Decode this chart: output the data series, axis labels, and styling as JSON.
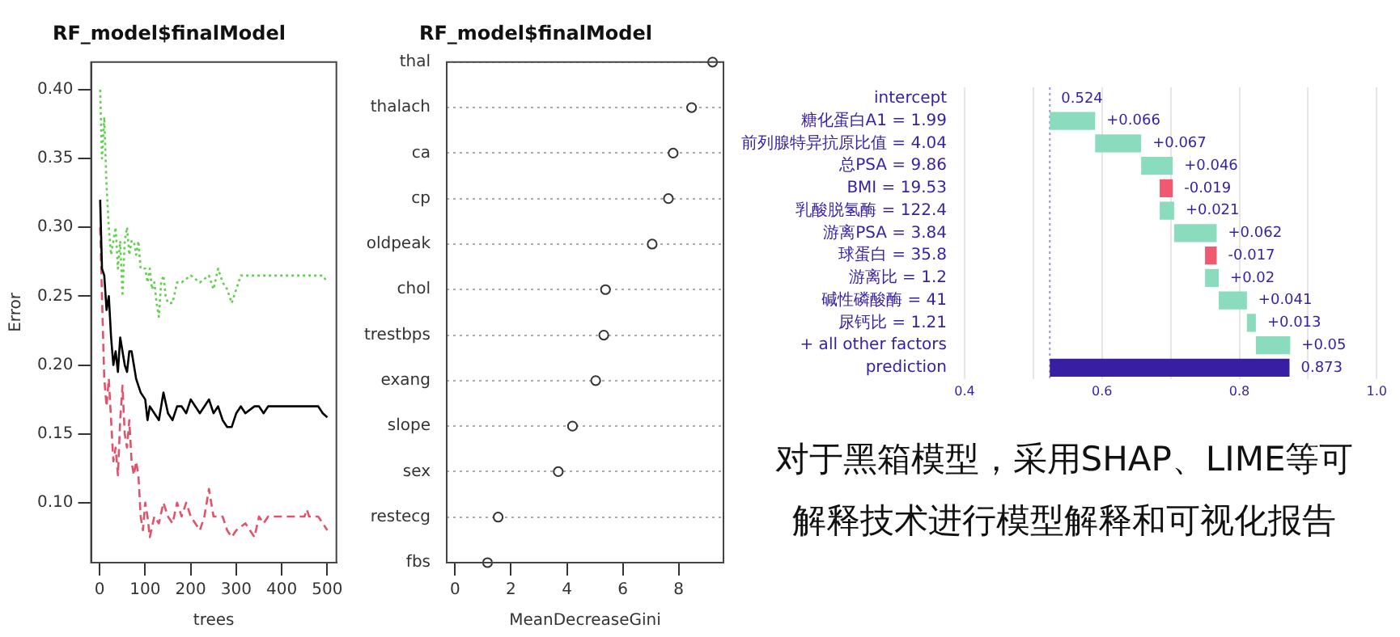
{
  "chart_data": [
    {
      "type": "line",
      "title": "RF_model$finalModel",
      "xlabel": "trees",
      "ylabel": "Error",
      "xlim": [
        -19,
        520
      ],
      "ylim": [
        0.0565,
        0.42
      ],
      "xticks": [
        0,
        100,
        200,
        300,
        400,
        500
      ],
      "yticks": [
        {
          "value": 0.1,
          "label": "0.10"
        },
        0.15,
        {
          "value": 0.2,
          "label": "0.20"
        },
        0.25,
        {
          "value": 0.3,
          "label": "0.30"
        },
        0.35,
        {
          "value": 0.4,
          "label": "0.40"
        }
      ],
      "grid": false,
      "legend": false,
      "marker": "none",
      "series": [
        {
          "color": "#61d04f",
          "line_style": "dotted",
          "x": [
            1,
            5,
            10,
            15,
            20,
            25,
            30,
            35,
            40,
            45,
            50,
            55,
            60,
            65,
            70,
            75,
            80,
            85,
            90,
            100,
            105,
            110,
            115,
            120,
            125,
            130,
            135,
            140,
            145,
            150,
            160,
            170,
            180,
            200,
            220,
            240,
            250,
            260,
            270,
            280,
            290,
            300,
            310,
            400,
            490,
            500
          ],
          "values": [
            0.4,
            0.35,
            0.38,
            0.33,
            0.3,
            0.28,
            0.29,
            0.3,
            0.27,
            0.29,
            0.25,
            0.29,
            0.3,
            0.28,
            0.29,
            0.29,
            0.28,
            0.29,
            0.27,
            0.27,
            0.26,
            0.27,
            0.255,
            0.26,
            0.245,
            0.235,
            0.26,
            0.265,
            0.25,
            0.245,
            0.245,
            0.26,
            0.26,
            0.265,
            0.26,
            0.265,
            0.255,
            0.27,
            0.26,
            0.255,
            0.245,
            0.255,
            0.265,
            0.265,
            0.265,
            0.26
          ]
        },
        {
          "color": "#000000",
          "line_style": "solid",
          "x": [
            1,
            5,
            10,
            15,
            20,
            25,
            30,
            35,
            40,
            45,
            50,
            55,
            60,
            65,
            70,
            75,
            80,
            90,
            100,
            105,
            110,
            120,
            130,
            140,
            150,
            160,
            170,
            180,
            190,
            200,
            210,
            220,
            230,
            240,
            250,
            260,
            270,
            280,
            290,
            300,
            310,
            320,
            340,
            350,
            360,
            370,
            450,
            460,
            480,
            490,
            500
          ],
          "values": [
            0.32,
            0.27,
            0.265,
            0.24,
            0.25,
            0.22,
            0.2,
            0.21,
            0.195,
            0.22,
            0.21,
            0.2,
            0.195,
            0.21,
            0.21,
            0.2,
            0.19,
            0.18,
            0.175,
            0.16,
            0.17,
            0.165,
            0.16,
            0.18,
            0.165,
            0.16,
            0.17,
            0.17,
            0.165,
            0.175,
            0.17,
            0.165,
            0.17,
            0.175,
            0.165,
            0.17,
            0.16,
            0.155,
            0.155,
            0.165,
            0.17,
            0.165,
            0.17,
            0.17,
            0.165,
            0.17,
            0.17,
            0.17,
            0.17,
            0.165,
            0.162
          ]
        },
        {
          "color": "#df536b",
          "line_style": "dashed",
          "x": [
            1,
            5,
            10,
            15,
            20,
            25,
            30,
            35,
            40,
            45,
            50,
            55,
            60,
            65,
            70,
            75,
            80,
            85,
            90,
            95,
            100,
            105,
            110,
            120,
            130,
            140,
            150,
            160,
            170,
            180,
            190,
            200,
            210,
            220,
            230,
            240,
            250,
            270,
            280,
            290,
            300,
            320,
            340,
            350,
            360,
            370,
            450,
            455,
            460,
            480,
            490,
            500
          ],
          "values": [
            0.3,
            0.25,
            0.19,
            0.17,
            0.19,
            0.16,
            0.13,
            0.14,
            0.12,
            0.16,
            0.185,
            0.15,
            0.14,
            0.16,
            0.13,
            0.12,
            0.13,
            0.12,
            0.09,
            0.08,
            0.1,
            0.09,
            0.075,
            0.09,
            0.085,
            0.1,
            0.09,
            0.085,
            0.1,
            0.09,
            0.1,
            0.09,
            0.085,
            0.08,
            0.09,
            0.11,
            0.09,
            0.09,
            0.08,
            0.075,
            0.08,
            0.085,
            0.075,
            0.09,
            0.085,
            0.09,
            0.09,
            0.095,
            0.09,
            0.09,
            0.085,
            0.08
          ]
        }
      ]
    },
    {
      "type": "scatter",
      "orientation": "horizontal",
      "title": "RF_model$finalModel",
      "xlabel": "MeanDecreaseGini",
      "categories": [
        "thal",
        "thalach",
        "ca",
        "cp",
        "oldpeak",
        "chol",
        "trestbps",
        "exang",
        "slope",
        "sex",
        "restecg",
        "fbs"
      ],
      "values": [
        9.21,
        8.46,
        7.8,
        7.63,
        7.05,
        5.38,
        5.32,
        5.03,
        4.2,
        3.69,
        1.54,
        1.16
      ],
      "color": "#333333",
      "marker": "circle",
      "xlim": [
        -0.3,
        9.6
      ],
      "xticks": [
        0,
        2,
        4,
        6,
        8
      ],
      "grid": "y",
      "legend": false
    },
    {
      "type": "bar",
      "orientation": "horizontal",
      "categories": [
        "intercept",
        "糖化蛋白A1 = 1.99",
        "前列腺特异抗原比值 = 4.04",
        "总PSA = 9.86",
        "BMI = 19.53",
        "乳酸脱氢酶 = 122.4",
        "游离PSA = 3.84",
        "球蛋白 = 35.8",
        "游离比 = 1.2",
        "碱性磷酸酶 = 41",
        "尿钙比 = 1.21",
        "+ all other factors",
        "prediction"
      ],
      "base": [
        null,
        0.524,
        0.59,
        0.657,
        0.703,
        0.684,
        0.705,
        0.767,
        0.75,
        0.77,
        0.811,
        0.824,
        0.524
      ],
      "values": [
        null,
        0.066,
        0.067,
        0.046,
        -0.019,
        0.021,
        0.062,
        -0.017,
        0.02,
        0.041,
        0.013,
        0.05,
        0.349
      ],
      "colors": [
        null,
        "#8bdcbe",
        "#8bdcbe",
        "#8bdcbe",
        "#f05a71",
        "#8bdcbe",
        "#8bdcbe",
        "#f05a71",
        "#8bdcbe",
        "#8bdcbe",
        "#8bdcbe",
        "#8bdcbe",
        "#371ea3"
      ],
      "value_labels": [
        null,
        "+0.066",
        "+0.067",
        "+0.046",
        "-0.019",
        "+0.021",
        "+0.062",
        "-0.017",
        "+0.02",
        "+0.041",
        "+0.013",
        "+0.05",
        "0.873"
      ],
      "xlim": [
        0.4,
        1.0
      ],
      "xticks": [
        0.4,
        {
          "value": 0.5,
          "label": null
        },
        0.6,
        {
          "value": 0.7,
          "label": null
        },
        0.8,
        {
          "value": 0.9,
          "label": null
        },
        {
          "value": 1,
          "label": "1.0"
        }
      ],
      "grid": "x",
      "legend": false,
      "ref_lines": [
        {
          "axis": "x",
          "value": 0.524,
          "label": "0.524",
          "color": "#9f92e0",
          "line_style": "dotted"
        }
      ]
    },
    {
      "type": "other",
      "annotations": [
        "对于黑箱模型，采用SHAP、LIME等可",
        "解释技术进行模型解释和可视化报告"
      ]
    }
  ]
}
